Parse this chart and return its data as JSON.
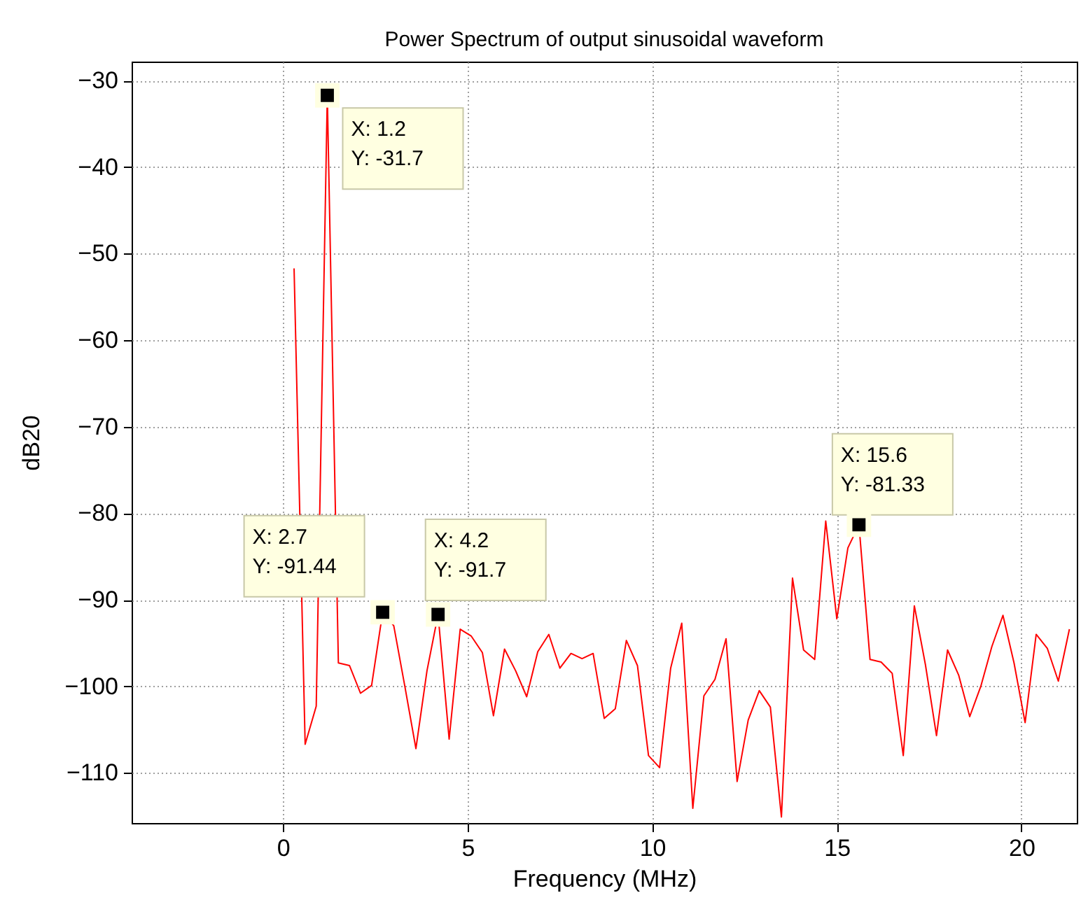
{
  "chart_data": {
    "type": "line",
    "title": "Power Spectrum of output sinusoidal waveform",
    "xlabel": "Frequency (MHz)",
    "ylabel": "dB20",
    "x": [
      0.3,
      0.6,
      0.9,
      1.2,
      1.5,
      1.8,
      2.1,
      2.4,
      2.7,
      3.0,
      3.3,
      3.6,
      3.9,
      4.2,
      4.5,
      4.8,
      5.1,
      5.4,
      5.7,
      6.0,
      6.3,
      6.6,
      6.9,
      7.2,
      7.5,
      7.8,
      8.1,
      8.4,
      8.7,
      9.0,
      9.3,
      9.6,
      9.9,
      10.2,
      10.5,
      10.8,
      11.1,
      11.4,
      11.7,
      12.0,
      12.3,
      12.6,
      12.9,
      13.2,
      13.5,
      13.8,
      14.1,
      14.4,
      14.7,
      15.0,
      15.3,
      15.6,
      15.9,
      16.2,
      16.5,
      16.8,
      17.1,
      17.4,
      17.7,
      18.0,
      18.3,
      18.6,
      18.9,
      19.2,
      19.5,
      19.8,
      20.1,
      20.4,
      20.7,
      21.0,
      21.3
    ],
    "series": [
      {
        "color": "#ff0000",
        "values": [
          -51.7,
          -106.7,
          -102.3,
          -31.7,
          -97.3,
          -97.6,
          -100.8,
          -99.9,
          -91.44,
          -93.0,
          -100.0,
          -107.2,
          -98.2,
          -91.7,
          -106.1,
          -93.4,
          -94.2,
          -96.1,
          -103.4,
          -95.7,
          -98.2,
          -101.2,
          -96.0,
          -94.0,
          -97.9,
          -96.2,
          -96.8,
          -96.2,
          -103.7,
          -102.6,
          -94.7,
          -97.6,
          -108.0,
          -109.4,
          -97.9,
          -92.7,
          -114.1,
          -101.1,
          -99.2,
          -94.5,
          -111.0,
          -103.9,
          -100.5,
          -102.4,
          -115.1,
          -87.5,
          -95.8,
          -96.9,
          -80.9,
          -92.2,
          -84.0,
          -81.33,
          -96.9,
          -97.2,
          -98.5,
          -108.0,
          -90.7,
          -97.5,
          -105.7,
          -95.8,
          -98.7,
          -103.5,
          -100.0,
          -95.4,
          -91.8,
          -97.3,
          -104.2,
          -94.0,
          -95.6,
          -99.4,
          -93.4
        ]
      }
    ],
    "xlim": [
      -4.1,
      21.5
    ],
    "ylim": [
      -115.8,
      -27.8
    ],
    "xticks": [
      0,
      5,
      10,
      15,
      20
    ],
    "yticks": [
      -110,
      -100,
      -90,
      -80,
      -70,
      -60,
      -50,
      -40,
      -30
    ],
    "grid": true,
    "line_style": "solid",
    "annotations": [
      {
        "text": "X: 1.2\nY: -31.7",
        "x": 1.2,
        "y": -31.7
      },
      {
        "text": "X: 2.7\nY: -91.44",
        "x": 2.7,
        "y": -91.44
      },
      {
        "text": "X: 4.2\nY: -91.7",
        "x": 4.2,
        "y": -91.7
      },
      {
        "text": "X: 15.6\nY: -81.33",
        "x": 15.6,
        "y": -81.33
      }
    ]
  }
}
